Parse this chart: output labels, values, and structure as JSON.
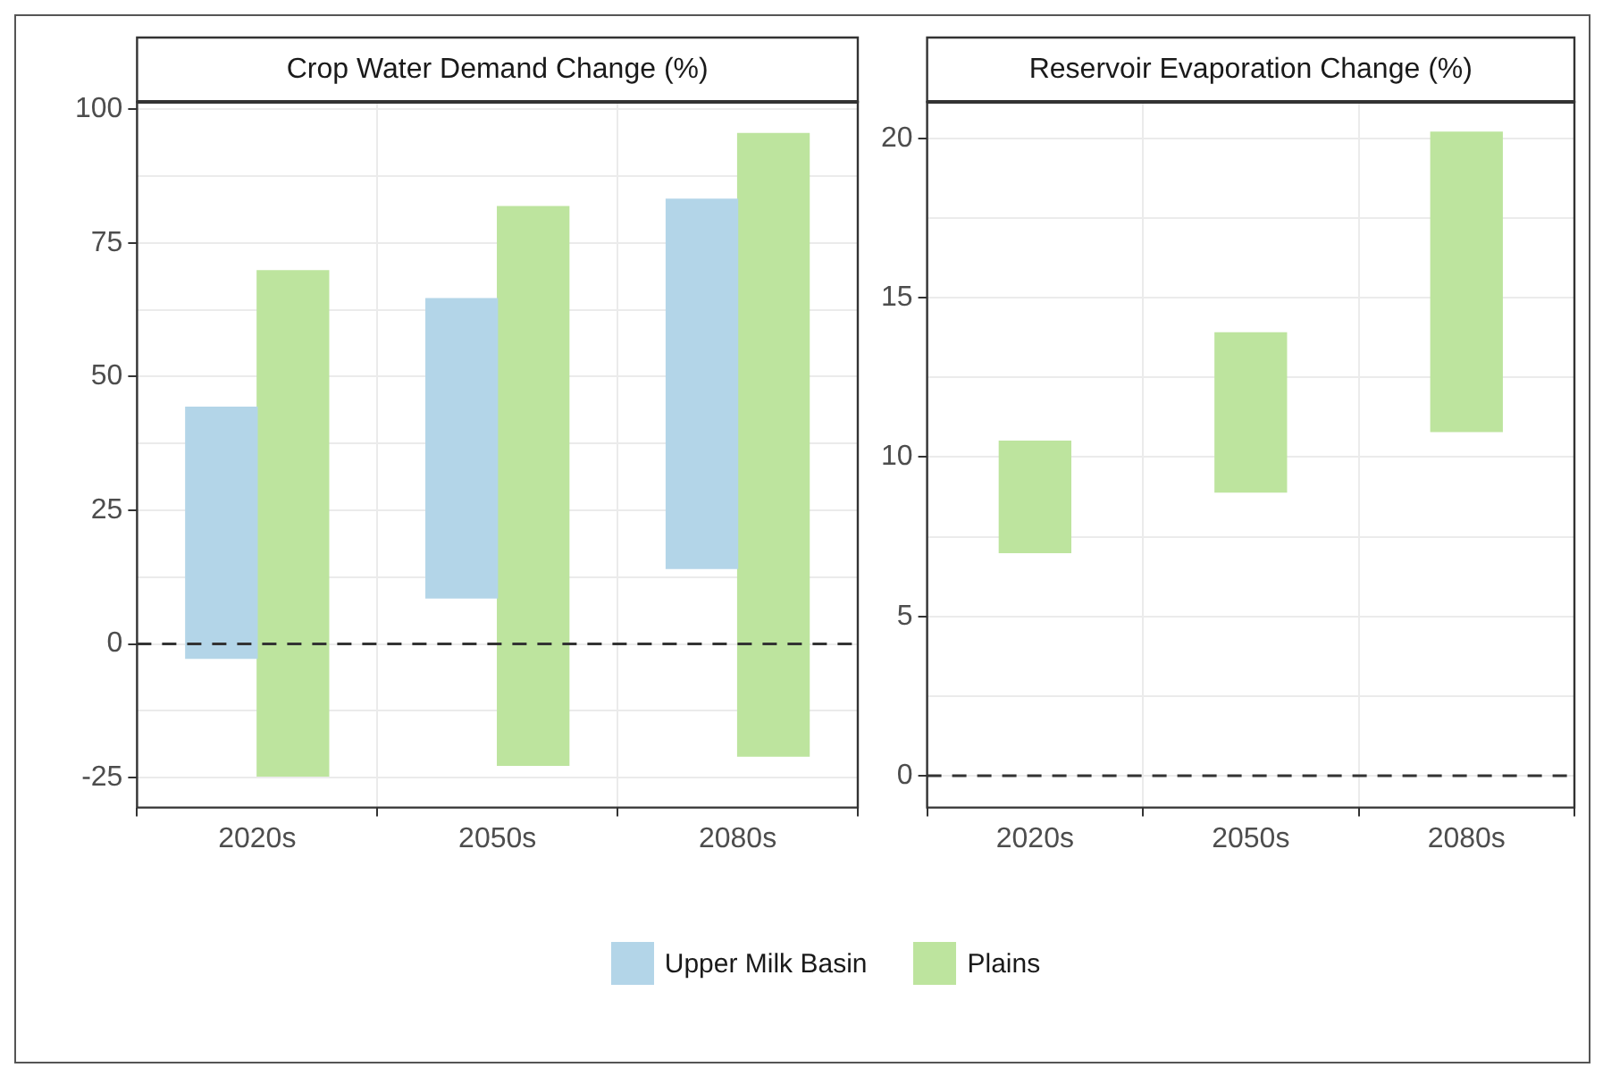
{
  "chart_data": [
    {
      "type": "bar",
      "title": "Crop Water Demand Change (%)",
      "categories": [
        "2020s",
        "2050s",
        "2080s"
      ],
      "series": [
        {
          "name": "Upper Milk Basin",
          "color": "#b3d5e8",
          "base": [
            -2.7,
            8.6,
            14.1
          ],
          "values": [
            47.0,
            56.0,
            69.1
          ]
        },
        {
          "name": "Plains",
          "color": "#bde49e",
          "base": [
            -24.7,
            -22.7,
            -21.0
          ],
          "values": [
            94.5,
            104.5,
            116.5
          ]
        }
      ],
      "ylim": [
        -30.6,
        101.4
      ],
      "yticks": [
        -25,
        {
          "value": -12.5,
          "label": null
        },
        0,
        {
          "value": 12.5,
          "label": null
        },
        25,
        {
          "value": 37.5,
          "label": null
        },
        50,
        {
          "value": 62.5,
          "label": null
        },
        75,
        {
          "value": 87.5,
          "label": null
        },
        100
      ],
      "ref_lines": [
        {
          "axis": "y",
          "value": 0,
          "line_style": "dashed",
          "color": "#333333"
        }
      ],
      "grid": true,
      "legend": "bottom"
    },
    {
      "type": "bar",
      "title": "Reservoir Evaporation Change (%)",
      "categories": [
        "2020s",
        "2050s",
        "2080s"
      ],
      "series": [
        {
          "color": "#bde49e",
          "base": [
            7.0,
            8.9,
            10.8
          ],
          "values": [
            3.5,
            5.0,
            9.4
          ]
        }
      ],
      "ylim": [
        -1.0,
        21.15
      ],
      "yticks": [
        0,
        {
          "value": 2.5,
          "label": null
        },
        5,
        {
          "value": 7.5,
          "label": null
        },
        10,
        {
          "value": 12.5,
          "label": null
        },
        15,
        {
          "value": 17.5,
          "label": null
        },
        20
      ],
      "ref_lines": [
        {
          "axis": "y",
          "value": 0,
          "line_style": "dashed",
          "color": "#333333"
        }
      ],
      "grid": true
    }
  ]
}
